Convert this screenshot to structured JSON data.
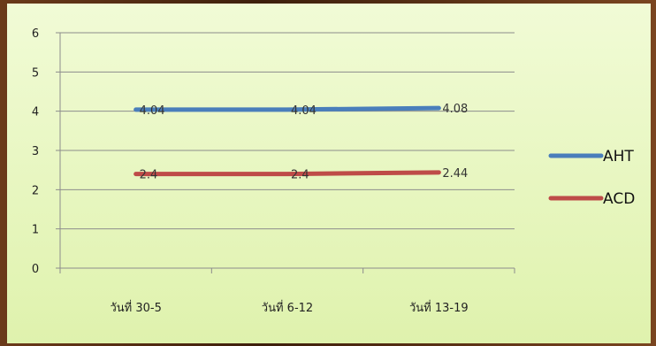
{
  "chart_data": {
    "type": "line",
    "categories": [
      "วันที่ 30-5",
      "วันที่ 6-12",
      "วันที่ 13-19"
    ],
    "series": [
      {
        "name": "AHT",
        "values": [
          4.04,
          4.04,
          4.08
        ],
        "labels": [
          "4.04",
          "4.04",
          "4.08"
        ],
        "color": "#4a7ebb"
      },
      {
        "name": "ACD",
        "values": [
          2.4,
          2.4,
          2.44
        ],
        "labels": [
          "2.4",
          "2.4",
          "2.44"
        ],
        "color": "#be4b48"
      }
    ],
    "y_ticks": [
      "0",
      "1",
      "2",
      "3",
      "4",
      "5",
      "6"
    ],
    "ylim": [
      0,
      6
    ],
    "grid": true,
    "legend_position": "right",
    "colors": {
      "plot_background": "#e9f7c4",
      "gridline": "#8c8c8c"
    }
  }
}
